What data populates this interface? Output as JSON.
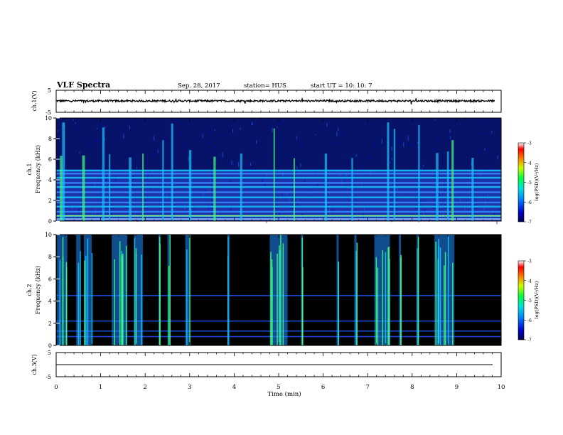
{
  "header": {
    "title": "VLF Spectra",
    "date": "Sep. 28, 2017",
    "station": "station= HUS",
    "start": "start  UT =   10: 10: 7"
  },
  "chart_data": [
    {
      "type": "line",
      "panel": "ch1-waveform",
      "ylabel": "ch.1(V)",
      "ylim": [
        -5,
        5
      ],
      "yticks": [
        "5",
        "-5"
      ],
      "xlim": [
        0,
        10
      ],
      "series": [
        {
          "x": [
            0,
            0.5,
            1,
            1.5,
            2,
            2.5,
            3,
            3.5,
            4,
            4.5,
            5,
            5.5,
            6,
            6.5,
            7,
            7.5,
            8,
            8.5,
            9,
            9.5,
            9.85
          ],
          "values": [
            -0.1,
            0,
            -0.1,
            0,
            0.1,
            -0.1,
            0,
            0.1,
            0,
            -0.1,
            0,
            0.1,
            0,
            -0.1,
            0.1,
            0,
            -0.1,
            0,
            0.1,
            0,
            0
          ]
        }
      ]
    },
    {
      "type": "heatmap",
      "panel": "ch1-spectrogram",
      "ylabel": "ch.1\nFrequency  (kHz)",
      "ylim": [
        0,
        10
      ],
      "yticks": [
        "0",
        "2",
        "4",
        "6",
        "8",
        "10"
      ],
      "xlim": [
        0,
        10
      ],
      "colorbar": {
        "label": "log(PSD)(V²/Hz)",
        "range": [
          -7,
          -3
        ],
        "ticks": [
          "-3",
          "-4",
          "-5",
          "-6",
          "-7"
        ]
      },
      "bands_khz": [
        0.2,
        0.5,
        0.9,
        1.4,
        1.8,
        2.3,
        2.8,
        3.3,
        3.7,
        4.2,
        4.6,
        4.9
      ],
      "bursts_min": [
        0.1,
        0.15,
        0.6,
        1.05,
        1.2,
        1.65,
        1.95,
        2.4,
        2.6,
        3.0,
        3.55,
        4.15,
        4.9,
        5.35,
        6.05,
        6.65,
        7.45,
        7.6,
        8.15,
        8.55,
        8.8,
        8.9,
        9.35
      ]
    },
    {
      "type": "heatmap",
      "panel": "ch2-spectrogram",
      "ylabel": "ch.2\nFrequency  (kHz)",
      "ylim": [
        0,
        10
      ],
      "yticks": [
        "0",
        "2",
        "4",
        "6",
        "8",
        "10"
      ],
      "xlim": [
        0,
        10
      ],
      "colorbar": {
        "label": "log(PSD)(V²/Hz)",
        "range": [
          -7,
          -3
        ],
        "ticks": [
          "-3",
          "-4",
          "-5",
          "-6",
          "-7"
        ]
      },
      "bands_khz": [
        0.8,
        1.3,
        2.2,
        4.5
      ],
      "bursts_min": [
        [
          0.02,
          0.25
        ],
        [
          0.45,
          0.55
        ],
        [
          0.62,
          0.8
        ],
        [
          1.25,
          1.6
        ],
        [
          1.75,
          1.95
        ],
        [
          2.3,
          2.35
        ],
        [
          2.5,
          2.55
        ],
        [
          2.9,
          3.0
        ],
        [
          3.85,
          3.9
        ],
        [
          4.8,
          5.2
        ],
        [
          5.5,
          5.55
        ],
        [
          6.3,
          6.35
        ],
        [
          6.7,
          6.75
        ],
        [
          7.15,
          7.5
        ],
        [
          7.7,
          7.75
        ],
        [
          8.1,
          8.15
        ],
        [
          8.5,
          8.95
        ]
      ]
    },
    {
      "type": "line",
      "panel": "ch3-waveform",
      "ylabel": "ch.3(V)",
      "ylim": [
        -5,
        5
      ],
      "yticks": [
        "5",
        "-5"
      ],
      "xlim": [
        0,
        10
      ],
      "xlabel": "Time  (min)",
      "xticks": [
        "0",
        "1",
        "2",
        "3",
        "4",
        "5",
        "6",
        "7",
        "8",
        "9",
        "10"
      ],
      "series": [
        {
          "x": [
            0,
            10
          ],
          "values": [
            0,
            0
          ]
        }
      ]
    }
  ],
  "colors": {
    "background": "#000000",
    "noise": "#0a1a8c",
    "mid": "#1e5bff",
    "cyan": "#18c8ff",
    "green": "#40ff80"
  }
}
